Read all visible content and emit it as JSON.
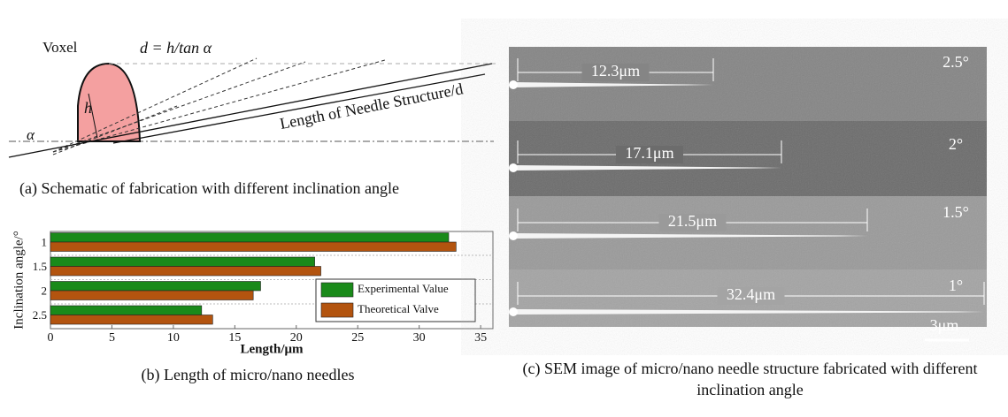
{
  "schematic": {
    "voxel": "Voxel",
    "formula": "d = h/tan α",
    "height": "h",
    "angle": "α",
    "length": "Length of Needle Structure/d",
    "caption": "(a) Schematic of fabrication with different inclination angle"
  },
  "chart_data": {
    "type": "bar",
    "orientation": "horizontal",
    "caption": "(b) Length of micro/nano needles",
    "categories": [
      "1",
      "1.5",
      "2",
      "2.5"
    ],
    "series": [
      {
        "name": "Experimental Value",
        "color": "#1a8a1a",
        "values": [
          32.4,
          21.5,
          17.1,
          12.3
        ]
      },
      {
        "name": "Theoretical Valve",
        "color": "#b3540f",
        "values": [
          33,
          22,
          16.5,
          13.2
        ]
      }
    ],
    "xlim": [
      0,
      36
    ],
    "xticks": [
      0,
      5,
      10,
      15,
      20,
      25,
      30,
      35
    ],
    "xlabel": "Length/μm",
    "ylabel": "Inclination angle/°",
    "grid": true,
    "legend": "lower right"
  },
  "sem": {
    "strips": [
      {
        "length": "12.3μm",
        "angle": "2.5°"
      },
      {
        "length": "17.1μm",
        "angle": "2°"
      },
      {
        "length": "21.5μm",
        "angle": "1.5°"
      },
      {
        "length": "32.4μm",
        "angle": "1°"
      }
    ],
    "scale": "3μm",
    "caption": "(c) SEM image of micro/nano needle structure fabricated with different inclination angle"
  }
}
